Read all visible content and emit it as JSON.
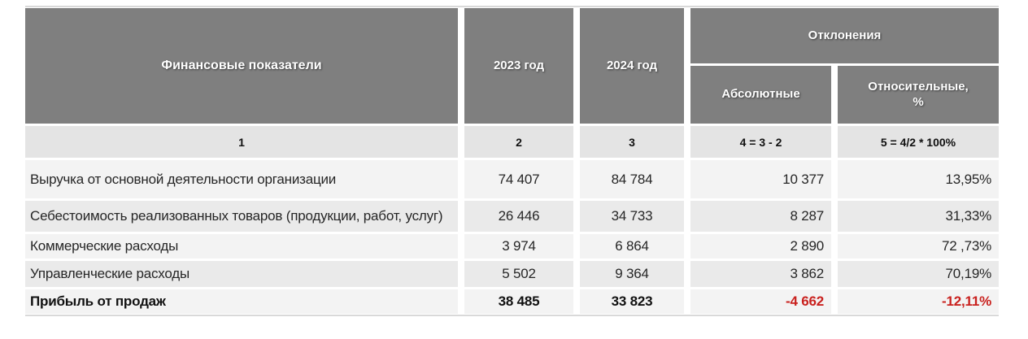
{
  "table": {
    "title_column": "Финансовые показатели",
    "headers": {
      "indicators": "Финансовые показатели",
      "year2023": "2023 год",
      "year2024": "2024 год",
      "deviations": "Отклонения",
      "absolute": "Абсолютные",
      "relative": "Относительные,\n%"
    },
    "numbering": [
      "1",
      "2",
      "3",
      "4 = 3 - 2",
      "5 = 4/2 * 100%"
    ],
    "rows": [
      {
        "label": "Выручка от основной деятельности организации",
        "y2023": "74 407",
        "y2024": "84 784",
        "abs": "10 377",
        "rel": "13,95%"
      },
      {
        "label": "Себестоимость реализованных товаров (продукции, работ, услуг)",
        "y2023": "26 446",
        "y2024": "34 733",
        "abs": "8 287",
        "rel": "31,33%"
      },
      {
        "label": "Коммерческие расходы",
        "y2023": "3 974",
        "y2024": "6 864",
        "abs": "2 890",
        "rel": "72 ,73%"
      },
      {
        "label": "Управленческие расходы",
        "y2023": "5 502",
        "y2024": "9 364",
        "abs": "3 862",
        "rel": "70,19%"
      },
      {
        "label": "Прибыль от продаж",
        "y2023": "38 485",
        "y2024": "33 823",
        "abs": "-4 662",
        "rel": "-12,11%"
      }
    ]
  },
  "colors": {
    "header_bg": "#7f7f7f",
    "header_text": "#ffffff",
    "numbering_bg": "#e4e4e4",
    "band_light": "#f3f3f3",
    "band_dark": "#eaeaea",
    "negative_text": "#c9211e",
    "body_text": "#262626",
    "edge_line": "#d9d9d9"
  }
}
